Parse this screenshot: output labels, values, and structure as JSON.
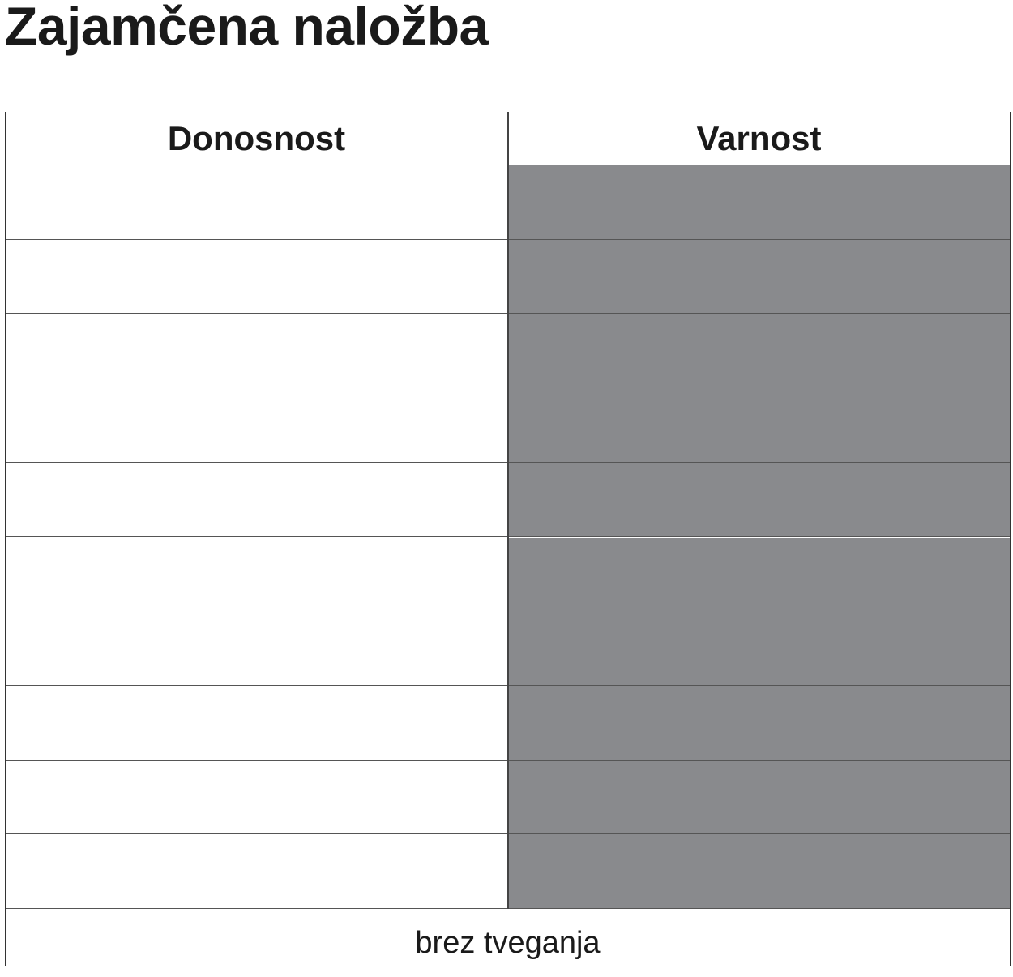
{
  "title": "Zajamčena naložba",
  "chart_data": {
    "type": "bar",
    "categories": [
      "Donosnost",
      "Varnost"
    ],
    "values": [
      0,
      10
    ],
    "ylim": [
      0,
      10
    ],
    "footer_label": "brez tveganja",
    "fill_color": "#898a8d"
  }
}
